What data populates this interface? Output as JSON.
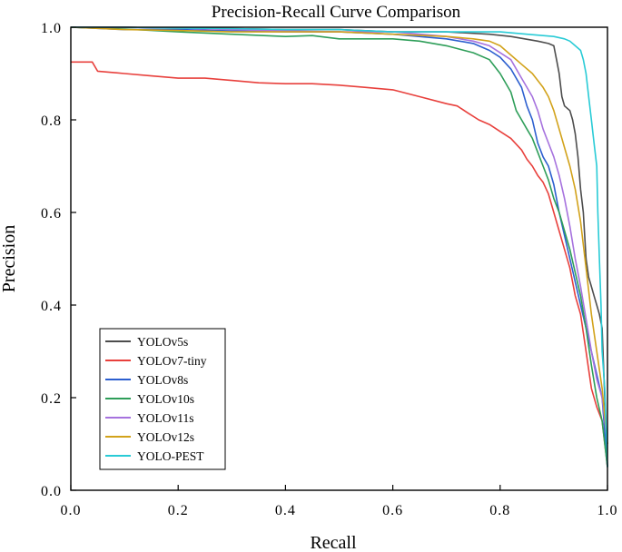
{
  "chart_data": {
    "type": "line",
    "title": "Precision-Recall Curve Comparison",
    "xlabel": "Recall",
    "ylabel": "Precision",
    "xlim": [
      0,
      1
    ],
    "ylim": [
      0,
      1
    ],
    "xticks": [
      "0.0",
      "0.2",
      "0.4",
      "0.6",
      "0.8",
      "1.0"
    ],
    "yticks": [
      "0.0",
      "0.2",
      "0.4",
      "0.6",
      "0.8",
      "1.0"
    ],
    "grid": false,
    "legend_position": "bottom-left",
    "series": [
      {
        "name": "YOLOv5s",
        "color": "#4d4d4d",
        "points": [
          [
            0,
            1.0
          ],
          [
            0.1,
            1.0
          ],
          [
            0.2,
            0.998
          ],
          [
            0.3,
            0.997
          ],
          [
            0.4,
            0.995
          ],
          [
            0.5,
            0.995
          ],
          [
            0.6,
            0.99
          ],
          [
            0.7,
            0.99
          ],
          [
            0.78,
            0.985
          ],
          [
            0.82,
            0.98
          ],
          [
            0.87,
            0.97
          ],
          [
            0.89,
            0.965
          ],
          [
            0.9,
            0.96
          ],
          [
            0.905,
            0.93
          ],
          [
            0.91,
            0.9
          ],
          [
            0.915,
            0.85
          ],
          [
            0.92,
            0.83
          ],
          [
            0.93,
            0.82
          ],
          [
            0.935,
            0.8
          ],
          [
            0.94,
            0.77
          ],
          [
            0.945,
            0.72
          ],
          [
            0.95,
            0.65
          ],
          [
            0.955,
            0.6
          ],
          [
            0.96,
            0.5
          ],
          [
            0.965,
            0.46
          ],
          [
            0.97,
            0.44
          ],
          [
            0.975,
            0.42
          ],
          [
            0.98,
            0.4
          ],
          [
            0.985,
            0.38
          ],
          [
            0.99,
            0.35
          ],
          [
            0.995,
            0.2
          ],
          [
            1.0,
            0.05
          ]
        ]
      },
      {
        "name": "YOLOv7-tiny",
        "color": "#e8403c",
        "points": [
          [
            0,
            0.925
          ],
          [
            0.04,
            0.925
          ],
          [
            0.05,
            0.905
          ],
          [
            0.1,
            0.9
          ],
          [
            0.15,
            0.895
          ],
          [
            0.2,
            0.89
          ],
          [
            0.25,
            0.89
          ],
          [
            0.3,
            0.885
          ],
          [
            0.35,
            0.88
          ],
          [
            0.4,
            0.878
          ],
          [
            0.45,
            0.878
          ],
          [
            0.5,
            0.875
          ],
          [
            0.55,
            0.87
          ],
          [
            0.6,
            0.865
          ],
          [
            0.65,
            0.85
          ],
          [
            0.7,
            0.835
          ],
          [
            0.72,
            0.83
          ],
          [
            0.74,
            0.815
          ],
          [
            0.76,
            0.8
          ],
          [
            0.78,
            0.79
          ],
          [
            0.8,
            0.775
          ],
          [
            0.82,
            0.76
          ],
          [
            0.84,
            0.735
          ],
          [
            0.85,
            0.715
          ],
          [
            0.86,
            0.7
          ],
          [
            0.87,
            0.68
          ],
          [
            0.88,
            0.665
          ],
          [
            0.89,
            0.64
          ],
          [
            0.9,
            0.6
          ],
          [
            0.91,
            0.56
          ],
          [
            0.92,
            0.52
          ],
          [
            0.93,
            0.48
          ],
          [
            0.94,
            0.42
          ],
          [
            0.95,
            0.38
          ],
          [
            0.96,
            0.3
          ],
          [
            0.97,
            0.22
          ],
          [
            0.98,
            0.18
          ],
          [
            0.99,
            0.15
          ],
          [
            1.0,
            0.05
          ]
        ]
      },
      {
        "name": "YOLOv8s",
        "color": "#2c5fcf",
        "points": [
          [
            0,
            1.0
          ],
          [
            0.1,
            0.995
          ],
          [
            0.2,
            0.995
          ],
          [
            0.3,
            0.992
          ],
          [
            0.4,
            0.99
          ],
          [
            0.5,
            0.99
          ],
          [
            0.6,
            0.985
          ],
          [
            0.7,
            0.975
          ],
          [
            0.75,
            0.965
          ],
          [
            0.78,
            0.95
          ],
          [
            0.8,
            0.935
          ],
          [
            0.82,
            0.91
          ],
          [
            0.84,
            0.87
          ],
          [
            0.85,
            0.83
          ],
          [
            0.86,
            0.8
          ],
          [
            0.87,
            0.75
          ],
          [
            0.88,
            0.72
          ],
          [
            0.89,
            0.7
          ],
          [
            0.9,
            0.66
          ],
          [
            0.91,
            0.6
          ],
          [
            0.92,
            0.55
          ],
          [
            0.93,
            0.5
          ],
          [
            0.94,
            0.45
          ],
          [
            0.95,
            0.4
          ],
          [
            0.96,
            0.35
          ],
          [
            0.97,
            0.3
          ],
          [
            0.98,
            0.25
          ],
          [
            0.99,
            0.2
          ],
          [
            1.0,
            0.05
          ]
        ]
      },
      {
        "name": "YOLOv10s",
        "color": "#2e9e59",
        "points": [
          [
            0,
            1.0
          ],
          [
            0.05,
            0.998
          ],
          [
            0.1,
            0.996
          ],
          [
            0.2,
            0.99
          ],
          [
            0.3,
            0.985
          ],
          [
            0.4,
            0.98
          ],
          [
            0.45,
            0.982
          ],
          [
            0.5,
            0.975
          ],
          [
            0.55,
            0.975
          ],
          [
            0.6,
            0.975
          ],
          [
            0.65,
            0.97
          ],
          [
            0.7,
            0.96
          ],
          [
            0.75,
            0.945
          ],
          [
            0.78,
            0.93
          ],
          [
            0.8,
            0.9
          ],
          [
            0.82,
            0.86
          ],
          [
            0.83,
            0.82
          ],
          [
            0.84,
            0.8
          ],
          [
            0.85,
            0.78
          ],
          [
            0.86,
            0.76
          ],
          [
            0.87,
            0.73
          ],
          [
            0.88,
            0.7
          ],
          [
            0.89,
            0.67
          ],
          [
            0.9,
            0.63
          ],
          [
            0.91,
            0.6
          ],
          [
            0.92,
            0.56
          ],
          [
            0.93,
            0.52
          ],
          [
            0.94,
            0.47
          ],
          [
            0.95,
            0.42
          ],
          [
            0.96,
            0.35
          ],
          [
            0.97,
            0.27
          ],
          [
            0.98,
            0.2
          ],
          [
            0.99,
            0.15
          ],
          [
            1.0,
            0.05
          ]
        ]
      },
      {
        "name": "YOLOv11s",
        "color": "#a672de",
        "points": [
          [
            0,
            1.0
          ],
          [
            0.1,
            1.0
          ],
          [
            0.2,
            0.998
          ],
          [
            0.3,
            0.995
          ],
          [
            0.4,
            0.992
          ],
          [
            0.5,
            0.99
          ],
          [
            0.6,
            0.99
          ],
          [
            0.7,
            0.98
          ],
          [
            0.75,
            0.97
          ],
          [
            0.78,
            0.96
          ],
          [
            0.8,
            0.945
          ],
          [
            0.82,
            0.93
          ],
          [
            0.84,
            0.89
          ],
          [
            0.86,
            0.85
          ],
          [
            0.87,
            0.82
          ],
          [
            0.88,
            0.78
          ],
          [
            0.89,
            0.75
          ],
          [
            0.9,
            0.72
          ],
          [
            0.91,
            0.68
          ],
          [
            0.92,
            0.63
          ],
          [
            0.93,
            0.57
          ],
          [
            0.94,
            0.5
          ],
          [
            0.95,
            0.44
          ],
          [
            0.96,
            0.37
          ],
          [
            0.97,
            0.3
          ],
          [
            0.98,
            0.24
          ],
          [
            0.99,
            0.2
          ],
          [
            1.0,
            0.1
          ]
        ]
      },
      {
        "name": "YOLOv12s",
        "color": "#d2a21a",
        "points": [
          [
            0,
            1.0
          ],
          [
            0.1,
            0.995
          ],
          [
            0.2,
            0.993
          ],
          [
            0.3,
            0.99
          ],
          [
            0.4,
            0.99
          ],
          [
            0.5,
            0.99
          ],
          [
            0.6,
            0.985
          ],
          [
            0.7,
            0.98
          ],
          [
            0.75,
            0.975
          ],
          [
            0.78,
            0.97
          ],
          [
            0.8,
            0.96
          ],
          [
            0.82,
            0.94
          ],
          [
            0.84,
            0.92
          ],
          [
            0.86,
            0.9
          ],
          [
            0.88,
            0.87
          ],
          [
            0.89,
            0.85
          ],
          [
            0.9,
            0.82
          ],
          [
            0.91,
            0.78
          ],
          [
            0.92,
            0.74
          ],
          [
            0.93,
            0.7
          ],
          [
            0.94,
            0.65
          ],
          [
            0.95,
            0.58
          ],
          [
            0.96,
            0.48
          ],
          [
            0.97,
            0.38
          ],
          [
            0.98,
            0.3
          ],
          [
            0.99,
            0.22
          ],
          [
            1.0,
            0.1
          ]
        ]
      },
      {
        "name": "YOLO-PEST",
        "color": "#29cbd6",
        "points": [
          [
            0,
            1.0
          ],
          [
            0.1,
            1.0
          ],
          [
            0.2,
            0.998
          ],
          [
            0.3,
            0.997
          ],
          [
            0.4,
            0.995
          ],
          [
            0.5,
            0.995
          ],
          [
            0.6,
            0.99
          ],
          [
            0.7,
            0.99
          ],
          [
            0.8,
            0.99
          ],
          [
            0.85,
            0.985
          ],
          [
            0.9,
            0.98
          ],
          [
            0.92,
            0.975
          ],
          [
            0.93,
            0.97
          ],
          [
            0.94,
            0.96
          ],
          [
            0.95,
            0.95
          ],
          [
            0.955,
            0.93
          ],
          [
            0.96,
            0.9
          ],
          [
            0.965,
            0.85
          ],
          [
            0.97,
            0.8
          ],
          [
            0.975,
            0.75
          ],
          [
            0.98,
            0.7
          ],
          [
            0.982,
            0.6
          ],
          [
            0.985,
            0.5
          ],
          [
            0.988,
            0.4
          ],
          [
            0.99,
            0.3
          ],
          [
            0.995,
            0.22
          ],
          [
            1.0,
            0.05
          ]
        ]
      }
    ]
  }
}
